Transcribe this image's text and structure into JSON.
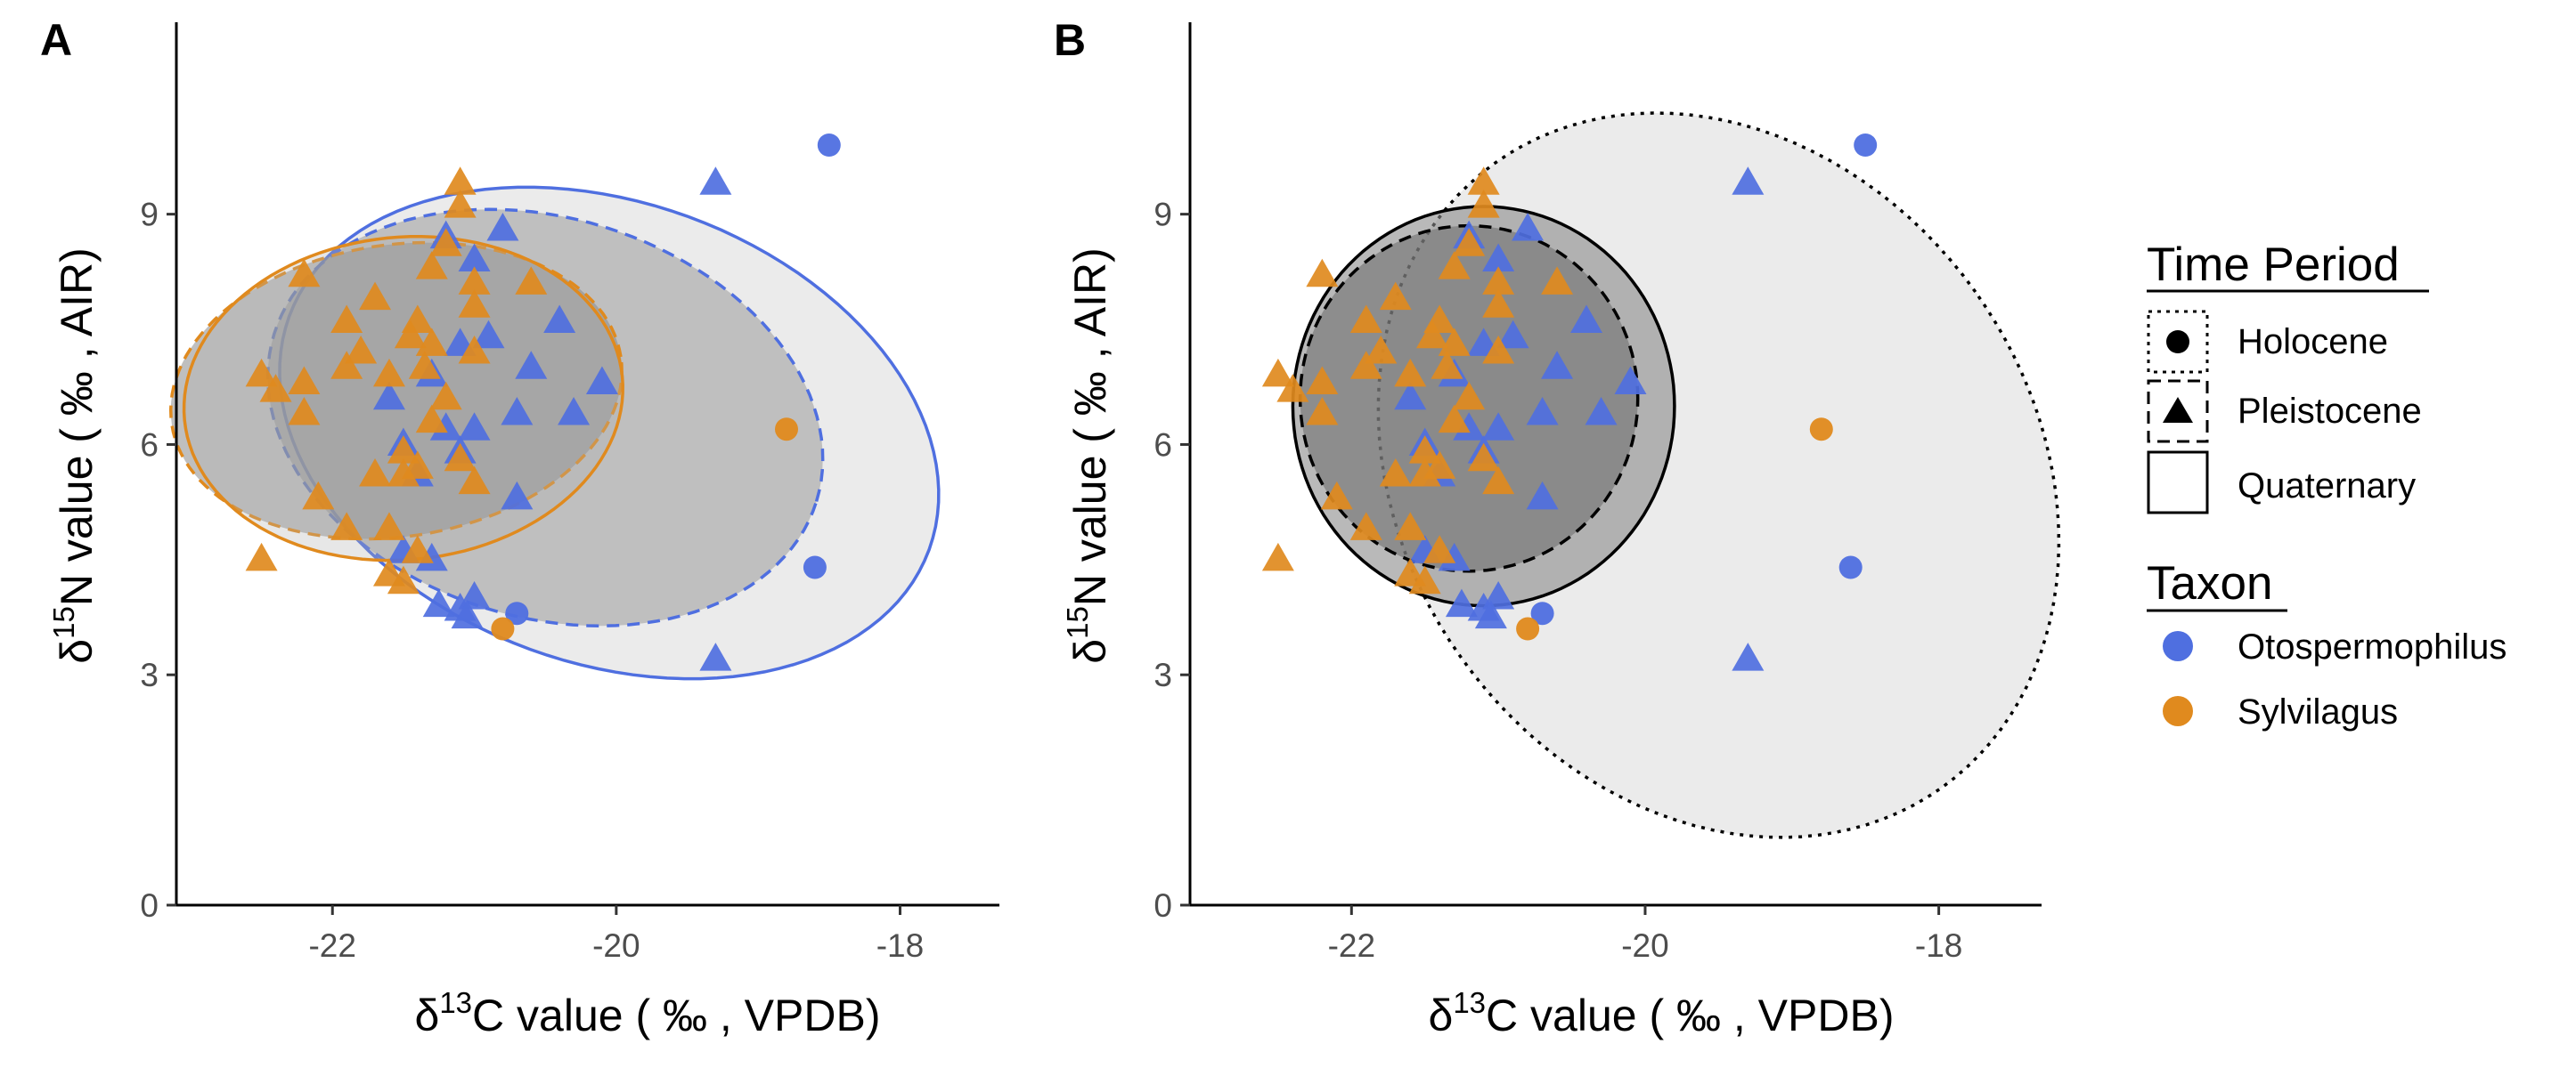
{
  "colors": {
    "Otospermophilus": "#4f6fe0",
    "Sylvilagus": "#e08a1e",
    "ellipse_fill_light": "#e8e8e8",
    "ellipse_fill_dark": "#7a7a7a"
  },
  "chart_data": [
    {
      "panel": "A",
      "type": "scatter",
      "xlabel": {
        "pre": "δ",
        "sup": "13",
        "post": "C value ( ‰ , VPDB)"
      },
      "ylabel": {
        "pre": "δ",
        "sup": "15",
        "post": "N value ( ‰ , AIR)"
      },
      "xlim": [
        -23.1,
        -17.3
      ],
      "ylim": [
        0,
        11.5
      ],
      "x_ticks": [
        -22,
        -20,
        -18
      ],
      "x_tick_labels": [
        "-22",
        "-20",
        "-18"
      ],
      "y_ticks": [
        0,
        3,
        6,
        9
      ],
      "y_tick_labels": [
        "0",
        "3",
        "6",
        "9"
      ],
      "ellipses": [
        {
          "taxon": "Otospermophilus",
          "period": "Quaternary",
          "cx": -20.05,
          "cy": 6.15,
          "rx": 2.4,
          "ry": 3.0,
          "rot": -0.35,
          "fill": "#ebebeb",
          "fill_opacity": 1.0,
          "stroke": "#4f6fe0",
          "dash": "solid"
        },
        {
          "taxon": "Otospermophilus",
          "period": "Pleistocene",
          "cx": -20.5,
          "cy": 6.35,
          "rx": 2.0,
          "ry": 2.6,
          "rot": -0.3,
          "fill": "#9a9a9a",
          "fill_opacity": 0.55,
          "stroke": "#4f6fe0",
          "dash": "dashed"
        },
        {
          "taxon": "Sylvilagus",
          "period": "Pleistocene",
          "cx": -21.55,
          "cy": 6.7,
          "rx": 1.6,
          "ry": 1.9,
          "rot": 0.15,
          "fill": "#8a8a8a",
          "fill_opacity": 0.55,
          "stroke": "#e08a1e",
          "dash": "dashed"
        },
        {
          "taxon": "Sylvilagus",
          "period": "Quaternary",
          "cx": -21.5,
          "cy": 6.6,
          "rx": 1.55,
          "ry": 2.1,
          "rot": 0.1,
          "fill": "#b0b0b0",
          "fill_opacity": 0.3,
          "stroke": "#e08a1e",
          "dash": "solid"
        }
      ]
    },
    {
      "panel": "B",
      "type": "scatter",
      "xlabel": {
        "pre": "δ",
        "sup": "13",
        "post": "C value ( ‰ , VPDB)"
      },
      "ylabel": {
        "pre": "δ",
        "sup": "15",
        "post": "N value ( ‰ , AIR)"
      },
      "xlim": [
        -23.1,
        -17.3
      ],
      "ylim": [
        0,
        11.5
      ],
      "x_ticks": [
        -22,
        -20,
        -18
      ],
      "x_tick_labels": [
        "-22",
        "-20",
        "-18"
      ],
      "y_ticks": [
        0,
        3,
        6,
        9
      ],
      "y_tick_labels": [
        "0",
        "3",
        "6",
        "9"
      ],
      "ellipses": [
        {
          "period": "Holocene",
          "cx": -19.5,
          "cy": 5.6,
          "rx": 2.15,
          "ry": 5.0,
          "rot": 0.62,
          "fill": "#ebebeb",
          "fill_opacity": 1.0,
          "stroke": "#000000",
          "dash": "dotted"
        },
        {
          "period": "Quaternary",
          "cx": -21.1,
          "cy": 6.5,
          "rx": 1.3,
          "ry": 2.6,
          "rot": 0.0,
          "fill": "#8a8a8a",
          "fill_opacity": 0.6,
          "stroke": "#000000",
          "dash": "solid"
        },
        {
          "period": "Pleistocene",
          "cx": -21.2,
          "cy": 6.6,
          "rx": 1.15,
          "ry": 2.25,
          "rot": 0.0,
          "fill": "#6a6a6a",
          "fill_opacity": 0.55,
          "stroke": "#000000",
          "dash": "dashed"
        }
      ]
    }
  ],
  "points": [
    {
      "taxon": "Otospermophilus",
      "period": "Holocene",
      "x": -18.5,
      "y": 9.9
    },
    {
      "taxon": "Otospermophilus",
      "period": "Holocene",
      "x": -18.6,
      "y": 4.4
    },
    {
      "taxon": "Otospermophilus",
      "period": "Holocene",
      "x": -20.7,
      "y": 3.8
    },
    {
      "taxon": "Sylvilagus",
      "period": "Holocene",
      "x": -18.8,
      "y": 6.2
    },
    {
      "taxon": "Sylvilagus",
      "period": "Holocene",
      "x": -20.8,
      "y": 3.6
    },
    {
      "taxon": "Otospermophilus",
      "period": "Pleistocene",
      "x": -19.3,
      "y": 9.4
    },
    {
      "taxon": "Otospermophilus",
      "period": "Pleistocene",
      "x": -19.3,
      "y": 3.2
    },
    {
      "taxon": "Otospermophilus",
      "period": "Pleistocene",
      "x": -20.8,
      "y": 8.8
    },
    {
      "taxon": "Otospermophilus",
      "period": "Pleistocene",
      "x": -21.2,
      "y": 8.7
    },
    {
      "taxon": "Otospermophilus",
      "period": "Pleistocene",
      "x": -21.0,
      "y": 8.4
    },
    {
      "taxon": "Otospermophilus",
      "period": "Pleistocene",
      "x": -20.9,
      "y": 7.4
    },
    {
      "taxon": "Otospermophilus",
      "period": "Pleistocene",
      "x": -20.4,
      "y": 7.6
    },
    {
      "taxon": "Otospermophilus",
      "period": "Pleistocene",
      "x": -21.1,
      "y": 7.3
    },
    {
      "taxon": "Otospermophilus",
      "period": "Pleistocene",
      "x": -20.6,
      "y": 7.0
    },
    {
      "taxon": "Otospermophilus",
      "period": "Pleistocene",
      "x": -21.3,
      "y": 6.9
    },
    {
      "taxon": "Otospermophilus",
      "period": "Pleistocene",
      "x": -20.1,
      "y": 6.8
    },
    {
      "taxon": "Otospermophilus",
      "period": "Pleistocene",
      "x": -21.6,
      "y": 6.6
    },
    {
      "taxon": "Otospermophilus",
      "period": "Pleistocene",
      "x": -20.7,
      "y": 6.4
    },
    {
      "taxon": "Otospermophilus",
      "period": "Pleistocene",
      "x": -20.3,
      "y": 6.4
    },
    {
      "taxon": "Otospermophilus",
      "period": "Pleistocene",
      "x": -21.2,
      "y": 6.2
    },
    {
      "taxon": "Otospermophilus",
      "period": "Pleistocene",
      "x": -21.0,
      "y": 6.2
    },
    {
      "taxon": "Otospermophilus",
      "period": "Pleistocene",
      "x": -21.5,
      "y": 6.0
    },
    {
      "taxon": "Otospermophilus",
      "period": "Pleistocene",
      "x": -21.1,
      "y": 5.9
    },
    {
      "taxon": "Otospermophilus",
      "period": "Pleistocene",
      "x": -21.4,
      "y": 5.6
    },
    {
      "taxon": "Otospermophilus",
      "period": "Pleistocene",
      "x": -20.7,
      "y": 5.3
    },
    {
      "taxon": "Otospermophilus",
      "period": "Pleistocene",
      "x": -21.5,
      "y": 4.6
    },
    {
      "taxon": "Otospermophilus",
      "period": "Pleistocene",
      "x": -21.3,
      "y": 4.5
    },
    {
      "taxon": "Otospermophilus",
      "period": "Pleistocene",
      "x": -21.0,
      "y": 4.0
    },
    {
      "taxon": "Otospermophilus",
      "period": "Pleistocene",
      "x": -21.25,
      "y": 3.9
    },
    {
      "taxon": "Otospermophilus",
      "period": "Pleistocene",
      "x": -21.1,
      "y": 3.85
    },
    {
      "taxon": "Otospermophilus",
      "period": "Pleistocene",
      "x": -21.05,
      "y": 3.75
    },
    {
      "taxon": "Sylvilagus",
      "period": "Pleistocene",
      "x": -22.5,
      "y": 4.5
    },
    {
      "taxon": "Sylvilagus",
      "period": "Pleistocene",
      "x": -21.1,
      "y": 9.4
    },
    {
      "taxon": "Sylvilagus",
      "period": "Pleistocene",
      "x": -21.1,
      "y": 9.1
    },
    {
      "taxon": "Sylvilagus",
      "period": "Pleistocene",
      "x": -21.2,
      "y": 8.6
    },
    {
      "taxon": "Sylvilagus",
      "period": "Pleistocene",
      "x": -22.2,
      "y": 8.2
    },
    {
      "taxon": "Sylvilagus",
      "period": "Pleistocene",
      "x": -21.3,
      "y": 8.3
    },
    {
      "taxon": "Sylvilagus",
      "period": "Pleistocene",
      "x": -20.6,
      "y": 8.1
    },
    {
      "taxon": "Sylvilagus",
      "period": "Pleistocene",
      "x": -21.0,
      "y": 8.1
    },
    {
      "taxon": "Sylvilagus",
      "period": "Pleistocene",
      "x": -21.7,
      "y": 7.9
    },
    {
      "taxon": "Sylvilagus",
      "period": "Pleistocene",
      "x": -21.0,
      "y": 7.8
    },
    {
      "taxon": "Sylvilagus",
      "period": "Pleistocene",
      "x": -21.9,
      "y": 7.6
    },
    {
      "taxon": "Sylvilagus",
      "period": "Pleistocene",
      "x": -21.4,
      "y": 7.6
    },
    {
      "taxon": "Sylvilagus",
      "period": "Pleistocene",
      "x": -21.45,
      "y": 7.4
    },
    {
      "taxon": "Sylvilagus",
      "period": "Pleistocene",
      "x": -21.3,
      "y": 7.3
    },
    {
      "taxon": "Sylvilagus",
      "period": "Pleistocene",
      "x": -21.8,
      "y": 7.2
    },
    {
      "taxon": "Sylvilagus",
      "period": "Pleistocene",
      "x": -21.35,
      "y": 7.0
    },
    {
      "taxon": "Sylvilagus",
      "period": "Pleistocene",
      "x": -21.9,
      "y": 7.0
    },
    {
      "taxon": "Sylvilagus",
      "period": "Pleistocene",
      "x": -21.6,
      "y": 6.9
    },
    {
      "taxon": "Sylvilagus",
      "period": "Pleistocene",
      "x": -22.5,
      "y": 6.9
    },
    {
      "taxon": "Sylvilagus",
      "period": "Pleistocene",
      "x": -21.0,
      "y": 7.2
    },
    {
      "taxon": "Sylvilagus",
      "period": "Pleistocene",
      "x": -22.4,
      "y": 6.7
    },
    {
      "taxon": "Sylvilagus",
      "period": "Pleistocene",
      "x": -22.2,
      "y": 6.8
    },
    {
      "taxon": "Sylvilagus",
      "period": "Pleistocene",
      "x": -21.2,
      "y": 6.6
    },
    {
      "taxon": "Sylvilagus",
      "period": "Pleistocene",
      "x": -22.2,
      "y": 6.4
    },
    {
      "taxon": "Sylvilagus",
      "period": "Pleistocene",
      "x": -21.3,
      "y": 6.3
    },
    {
      "taxon": "Sylvilagus",
      "period": "Pleistocene",
      "x": -21.5,
      "y": 5.9
    },
    {
      "taxon": "Sylvilagus",
      "period": "Pleistocene",
      "x": -21.1,
      "y": 5.8
    },
    {
      "taxon": "Sylvilagus",
      "period": "Pleistocene",
      "x": -21.4,
      "y": 5.7
    },
    {
      "taxon": "Sylvilagus",
      "period": "Pleistocene",
      "x": -21.7,
      "y": 5.6
    },
    {
      "taxon": "Sylvilagus",
      "period": "Pleistocene",
      "x": -21.5,
      "y": 5.6
    },
    {
      "taxon": "Sylvilagus",
      "period": "Pleistocene",
      "x": -21.0,
      "y": 5.5
    },
    {
      "taxon": "Sylvilagus",
      "period": "Pleistocene",
      "x": -22.1,
      "y": 5.3
    },
    {
      "taxon": "Sylvilagus",
      "period": "Pleistocene",
      "x": -21.9,
      "y": 4.9
    },
    {
      "taxon": "Sylvilagus",
      "period": "Pleistocene",
      "x": -21.6,
      "y": 4.9
    },
    {
      "taxon": "Sylvilagus",
      "period": "Pleistocene",
      "x": -21.4,
      "y": 4.6
    },
    {
      "taxon": "Sylvilagus",
      "period": "Pleistocene",
      "x": -21.6,
      "y": 4.3
    },
    {
      "taxon": "Sylvilagus",
      "period": "Pleistocene",
      "x": -21.5,
      "y": 4.2
    }
  ],
  "legend": {
    "time_period": {
      "title": "Time Period",
      "items": [
        {
          "label": "Holocene",
          "shape": "circle",
          "dash": "dotted"
        },
        {
          "label": "Pleistocene",
          "shape": "triangle",
          "dash": "dashed"
        },
        {
          "label": "Quaternary",
          "shape": "none",
          "dash": "solid"
        }
      ]
    },
    "taxon": {
      "title": "Taxon",
      "items": [
        {
          "label": "Otospermophilus",
          "color": "#4f6fe0"
        },
        {
          "label": "Sylvilagus",
          "color": "#e08a1e"
        }
      ]
    }
  }
}
